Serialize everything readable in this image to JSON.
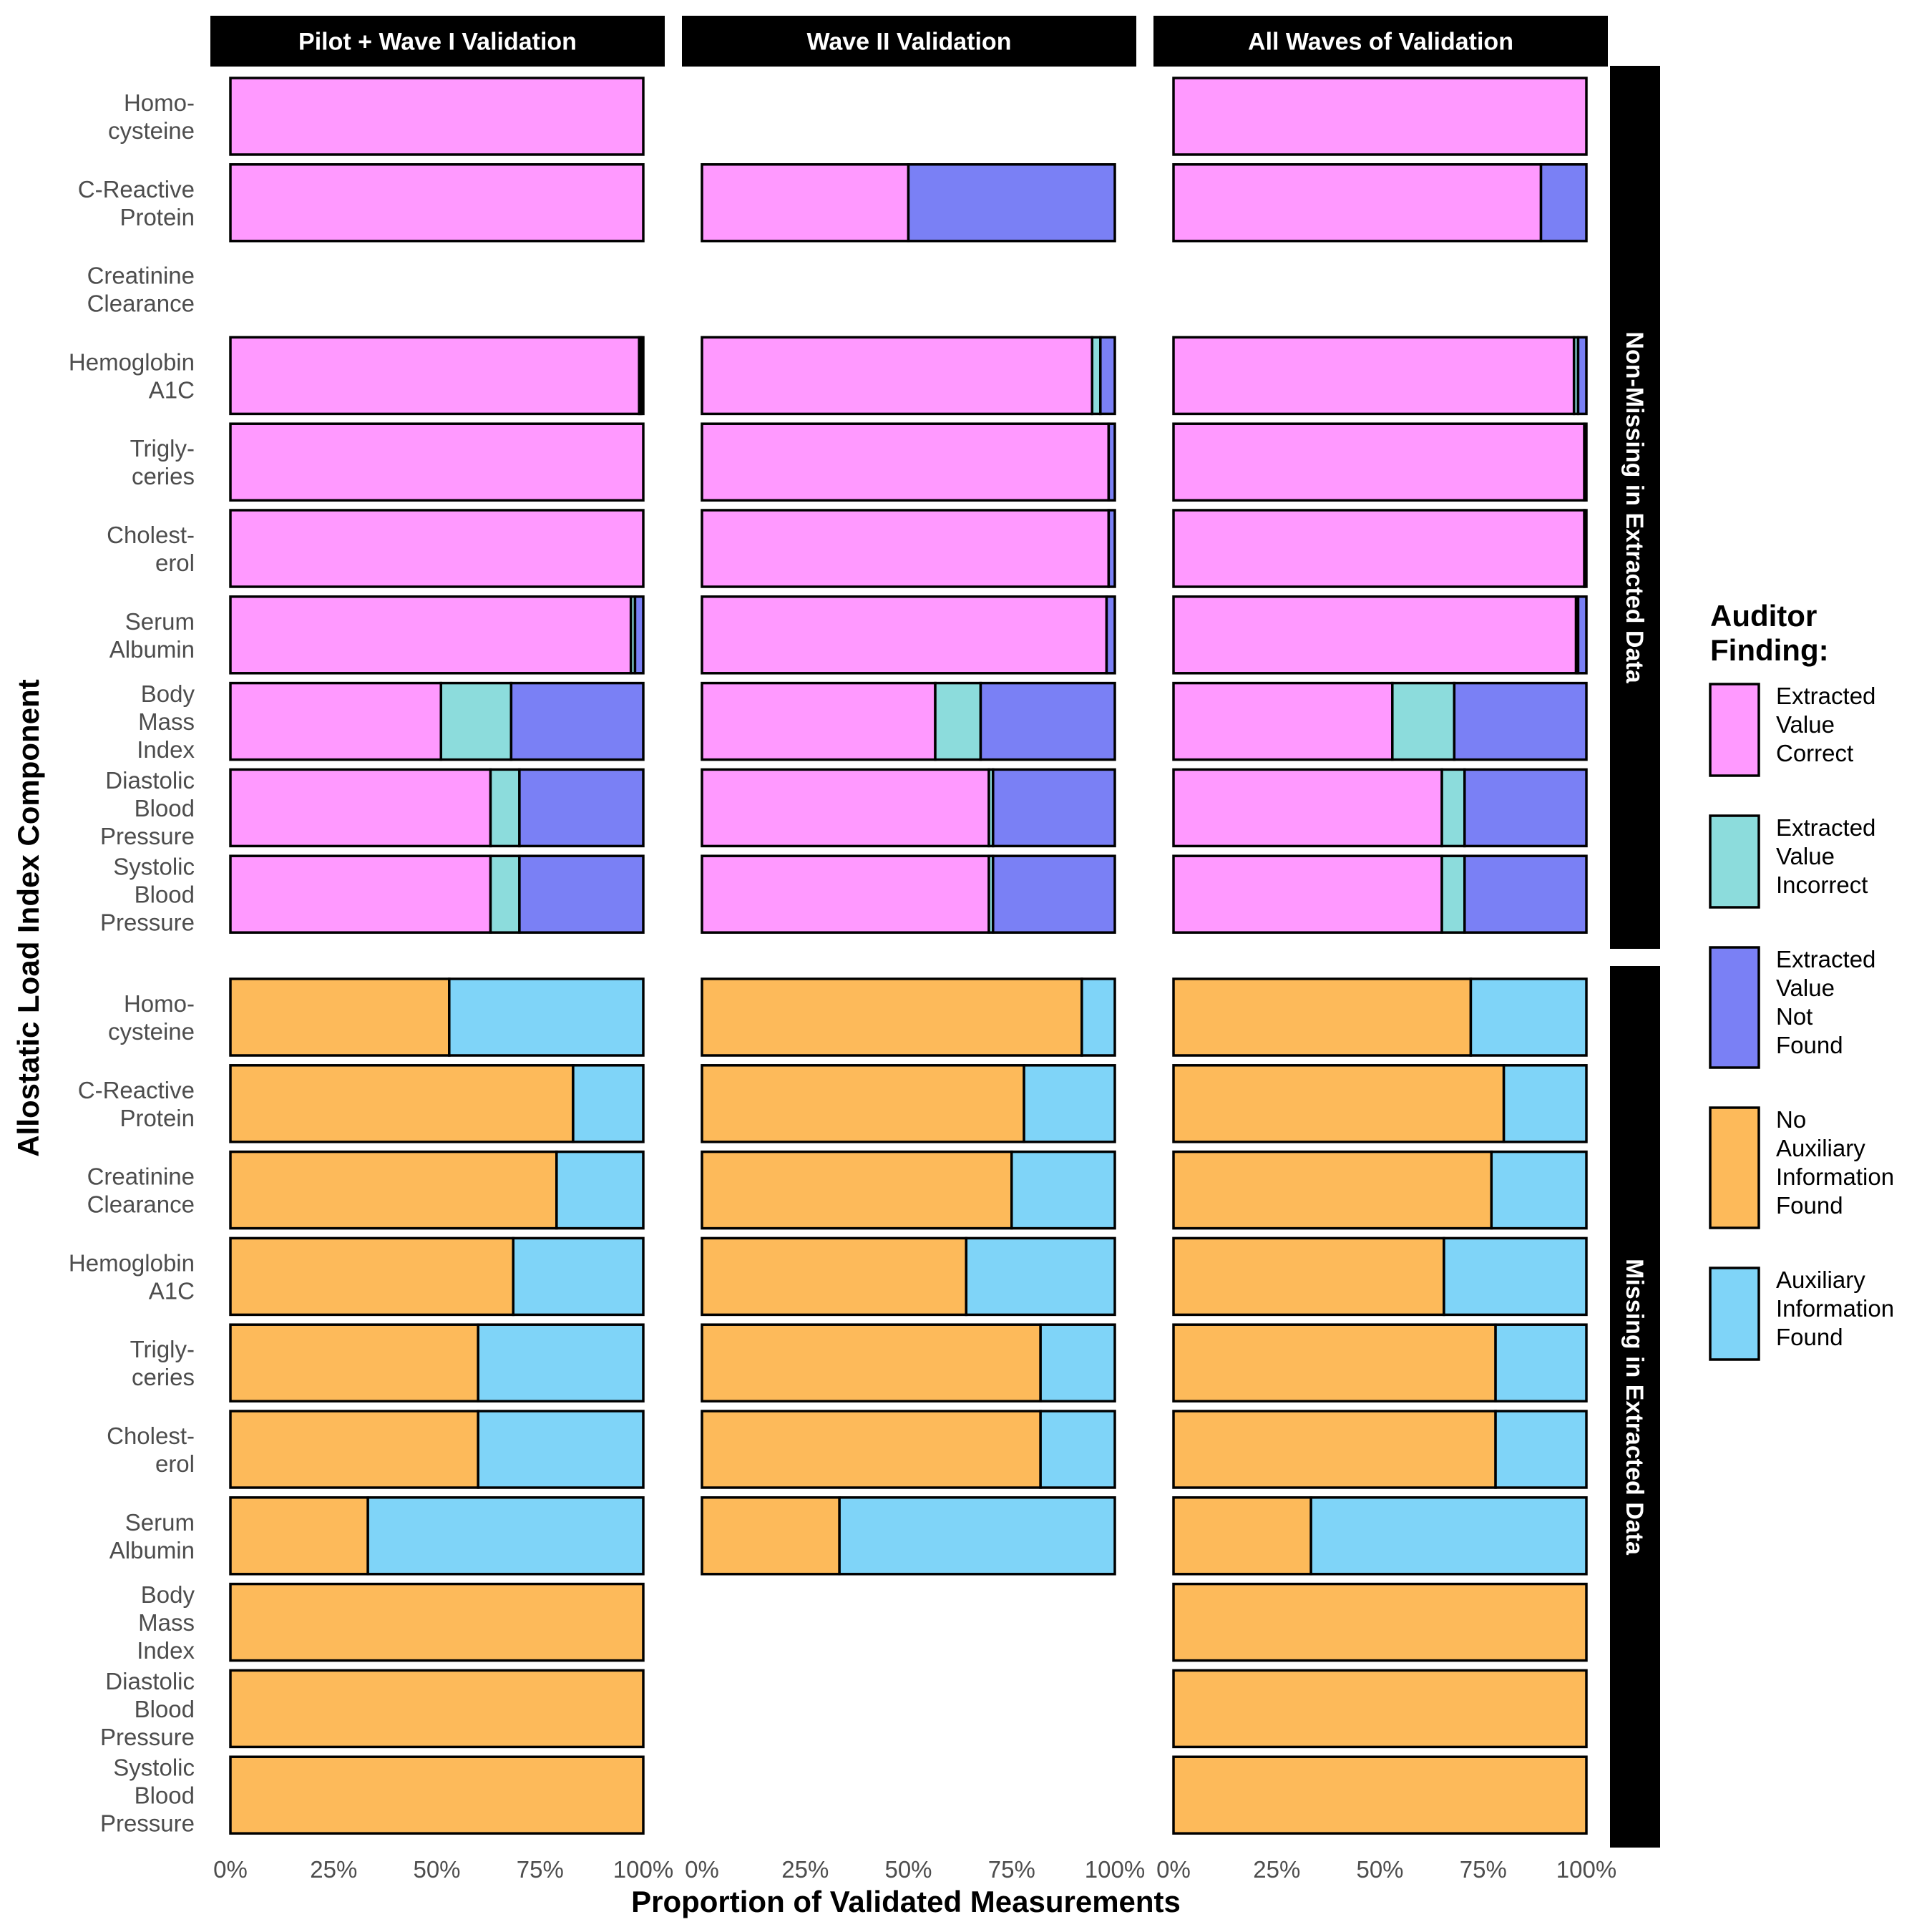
{
  "chart_data": {
    "type": "bar",
    "orientation": "horizontal",
    "stacked": true,
    "xlabel": "Proportion of Validated Measurements",
    "ylabel": "Allostatic Load Index Component",
    "x_ticks": [
      "0%",
      "25%",
      "50%",
      "75%",
      "100%"
    ],
    "xlim": [
      0,
      1
    ],
    "column_facets": [
      "Pilot + Wave I Validation",
      "Wave II Validation",
      "All Waves of Validation"
    ],
    "row_facets": [
      "Non-Missing in Extracted Data",
      "Missing in Extracted Data"
    ],
    "categories": [
      [
        "Homo-",
        "cysteine"
      ],
      [
        "C-Reactive",
        "Protein"
      ],
      [
        "Creatinine",
        "Clearance"
      ],
      [
        "Hemoglobin",
        "A1C"
      ],
      [
        "Trigly-",
        "ceries"
      ],
      [
        "Cholest-",
        "erol"
      ],
      [
        "Serum",
        "Albumin"
      ],
      [
        "Body",
        "Mass",
        "Index"
      ],
      [
        "Diastolic",
        "Blood",
        "Pressure"
      ],
      [
        "Systolic",
        "Blood",
        "Pressure"
      ]
    ],
    "legend": {
      "title": [
        "Auditor",
        "Finding:"
      ],
      "position": "right",
      "entries": [
        {
          "key": "evc",
          "label": [
            "Extracted",
            "Value",
            "Correct"
          ],
          "color": "#FF99FF"
        },
        {
          "key": "evi",
          "label": [
            "Extracted",
            "Value",
            "Incorrect"
          ],
          "color": "#8CDCDC"
        },
        {
          "key": "evnf",
          "label": [
            "Extracted",
            "Value",
            "Not",
            "Found"
          ],
          "color": "#7A80F5"
        },
        {
          "key": "naif",
          "label": [
            "No",
            "Auxiliary",
            "Information",
            "Found"
          ],
          "color": "#FDBA5A"
        },
        {
          "key": "aif",
          "label": [
            "Auxiliary",
            "Information",
            "Found"
          ],
          "color": "#7FD4F8"
        }
      ]
    },
    "panels": [
      {
        "row": 0,
        "col": 0,
        "bars": [
          {
            "category": 0,
            "segments": [
              [
                "evc",
                1.0
              ]
            ]
          },
          {
            "category": 1,
            "segments": [
              [
                "evc",
                1.0
              ]
            ]
          },
          {
            "category": 3,
            "segments": [
              [
                "evc",
                0.99
              ],
              [
                "evi",
                0.005
              ],
              [
                "evnf",
                0.005
              ]
            ]
          },
          {
            "category": 4,
            "segments": [
              [
                "evc",
                1.0
              ]
            ]
          },
          {
            "category": 5,
            "segments": [
              [
                "evc",
                1.0
              ]
            ]
          },
          {
            "category": 6,
            "segments": [
              [
                "evc",
                0.97
              ],
              [
                "evi",
                0.01
              ],
              [
                "evnf",
                0.02
              ]
            ]
          },
          {
            "category": 7,
            "segments": [
              [
                "evc",
                0.51
              ],
              [
                "evi",
                0.17
              ],
              [
                "evnf",
                0.32
              ]
            ]
          },
          {
            "category": 8,
            "segments": [
              [
                "evc",
                0.63
              ],
              [
                "evi",
                0.07
              ],
              [
                "evnf",
                0.3
              ]
            ]
          },
          {
            "category": 9,
            "segments": [
              [
                "evc",
                0.63
              ],
              [
                "evi",
                0.07
              ],
              [
                "evnf",
                0.3
              ]
            ]
          }
        ]
      },
      {
        "row": 0,
        "col": 1,
        "bars": [
          {
            "category": 1,
            "segments": [
              [
                "evc",
                0.5
              ],
              [
                "evnf",
                0.5
              ]
            ]
          },
          {
            "category": 3,
            "segments": [
              [
                "evc",
                0.945
              ],
              [
                "evi",
                0.02
              ],
              [
                "evnf",
                0.035
              ]
            ]
          },
          {
            "category": 4,
            "segments": [
              [
                "evc",
                0.985
              ],
              [
                "evnf",
                0.015
              ]
            ]
          },
          {
            "category": 5,
            "segments": [
              [
                "evc",
                0.985
              ],
              [
                "evnf",
                0.015
              ]
            ]
          },
          {
            "category": 6,
            "segments": [
              [
                "evc",
                0.98
              ],
              [
                "evnf",
                0.02
              ]
            ]
          },
          {
            "category": 7,
            "segments": [
              [
                "evc",
                0.565
              ],
              [
                "evi",
                0.11
              ],
              [
                "evnf",
                0.325
              ]
            ]
          },
          {
            "category": 8,
            "segments": [
              [
                "evc",
                0.695
              ],
              [
                "evi",
                0.01
              ],
              [
                "evnf",
                0.295
              ]
            ]
          },
          {
            "category": 9,
            "segments": [
              [
                "evc",
                0.695
              ],
              [
                "evi",
                0.01
              ],
              [
                "evnf",
                0.295
              ]
            ]
          }
        ]
      },
      {
        "row": 0,
        "col": 2,
        "bars": [
          {
            "category": 0,
            "segments": [
              [
                "evc",
                1.0
              ]
            ]
          },
          {
            "category": 1,
            "segments": [
              [
                "evc",
                0.89
              ],
              [
                "evnf",
                0.11
              ]
            ]
          },
          {
            "category": 3,
            "segments": [
              [
                "evc",
                0.97
              ],
              [
                "evi",
                0.01
              ],
              [
                "evnf",
                0.02
              ]
            ]
          },
          {
            "category": 4,
            "segments": [
              [
                "evc",
                0.995
              ],
              [
                "evnf",
                0.005
              ]
            ]
          },
          {
            "category": 5,
            "segments": [
              [
                "evc",
                0.995
              ],
              [
                "evnf",
                0.005
              ]
            ]
          },
          {
            "category": 6,
            "segments": [
              [
                "evc",
                0.975
              ],
              [
                "evi",
                0.005
              ],
              [
                "evnf",
                0.02
              ]
            ]
          },
          {
            "category": 7,
            "segments": [
              [
                "evc",
                0.53
              ],
              [
                "evi",
                0.15
              ],
              [
                "evnf",
                0.32
              ]
            ]
          },
          {
            "category": 8,
            "segments": [
              [
                "evc",
                0.65
              ],
              [
                "evi",
                0.055
              ],
              [
                "evnf",
                0.295
              ]
            ]
          },
          {
            "category": 9,
            "segments": [
              [
                "evc",
                0.65
              ],
              [
                "evi",
                0.055
              ],
              [
                "evnf",
                0.295
              ]
            ]
          }
        ]
      },
      {
        "row": 1,
        "col": 0,
        "bars": [
          {
            "category": 0,
            "segments": [
              [
                "naif",
                0.53
              ],
              [
                "aif",
                0.47
              ]
            ]
          },
          {
            "category": 1,
            "segments": [
              [
                "naif",
                0.83
              ],
              [
                "aif",
                0.17
              ]
            ]
          },
          {
            "category": 2,
            "segments": [
              [
                "naif",
                0.79
              ],
              [
                "aif",
                0.21
              ]
            ]
          },
          {
            "category": 3,
            "segments": [
              [
                "naif",
                0.685
              ],
              [
                "aif",
                0.315
              ]
            ]
          },
          {
            "category": 4,
            "segments": [
              [
                "naif",
                0.6
              ],
              [
                "aif",
                0.4
              ]
            ]
          },
          {
            "category": 5,
            "segments": [
              [
                "naif",
                0.6
              ],
              [
                "aif",
                0.4
              ]
            ]
          },
          {
            "category": 6,
            "segments": [
              [
                "naif",
                0.333
              ],
              [
                "aif",
                0.667
              ]
            ]
          },
          {
            "category": 7,
            "segments": [
              [
                "naif",
                1.0
              ]
            ]
          },
          {
            "category": 8,
            "segments": [
              [
                "naif",
                1.0
              ]
            ]
          },
          {
            "category": 9,
            "segments": [
              [
                "naif",
                1.0
              ]
            ]
          }
        ]
      },
      {
        "row": 1,
        "col": 1,
        "bars": [
          {
            "category": 0,
            "segments": [
              [
                "naif",
                0.92
              ],
              [
                "aif",
                0.08
              ]
            ]
          },
          {
            "category": 1,
            "segments": [
              [
                "naif",
                0.78
              ],
              [
                "aif",
                0.22
              ]
            ]
          },
          {
            "category": 2,
            "segments": [
              [
                "naif",
                0.75
              ],
              [
                "aif",
                0.25
              ]
            ]
          },
          {
            "category": 3,
            "segments": [
              [
                "naif",
                0.64
              ],
              [
                "aif",
                0.36
              ]
            ]
          },
          {
            "category": 4,
            "segments": [
              [
                "naif",
                0.82
              ],
              [
                "aif",
                0.18
              ]
            ]
          },
          {
            "category": 5,
            "segments": [
              [
                "naif",
                0.82
              ],
              [
                "aif",
                0.18
              ]
            ]
          },
          {
            "category": 6,
            "segments": [
              [
                "naif",
                0.333
              ],
              [
                "aif",
                0.667
              ]
            ]
          }
        ]
      },
      {
        "row": 1,
        "col": 2,
        "bars": [
          {
            "category": 0,
            "segments": [
              [
                "naif",
                0.72
              ],
              [
                "aif",
                0.28
              ]
            ]
          },
          {
            "category": 1,
            "segments": [
              [
                "naif",
                0.8
              ],
              [
                "aif",
                0.2
              ]
            ]
          },
          {
            "category": 2,
            "segments": [
              [
                "naif",
                0.77
              ],
              [
                "aif",
                0.23
              ]
            ]
          },
          {
            "category": 3,
            "segments": [
              [
                "naif",
                0.655
              ],
              [
                "aif",
                0.345
              ]
            ]
          },
          {
            "category": 4,
            "segments": [
              [
                "naif",
                0.78
              ],
              [
                "aif",
                0.22
              ]
            ]
          },
          {
            "category": 5,
            "segments": [
              [
                "naif",
                0.78
              ],
              [
                "aif",
                0.22
              ]
            ]
          },
          {
            "category": 6,
            "segments": [
              [
                "naif",
                0.333
              ],
              [
                "aif",
                0.667
              ]
            ]
          },
          {
            "category": 7,
            "segments": [
              [
                "naif",
                1.0
              ]
            ]
          },
          {
            "category": 8,
            "segments": [
              [
                "naif",
                1.0
              ]
            ]
          },
          {
            "category": 9,
            "segments": [
              [
                "naif",
                1.0
              ]
            ]
          }
        ]
      }
    ]
  }
}
